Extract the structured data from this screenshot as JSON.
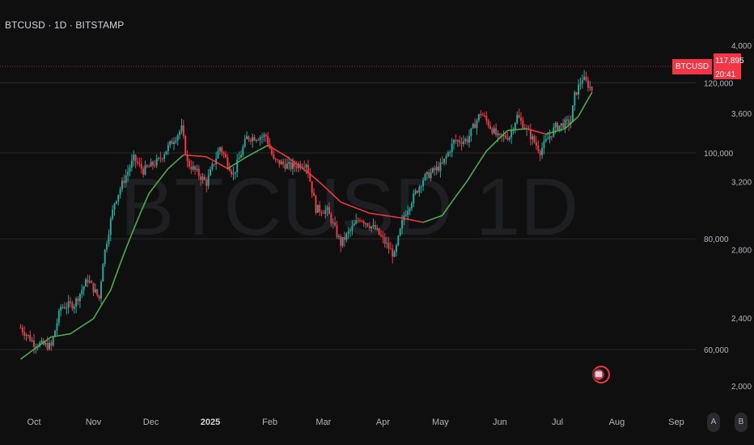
{
  "header": {
    "title": "BTCUSD · 1D · BITSTAMP"
  },
  "watermark": "BTCUSD 1D",
  "price_tag": {
    "symbol": "BTCUSD",
    "price": "117,895",
    "countdown": "20:41"
  },
  "axis_buttons": {
    "auto": "A",
    "log": "B"
  },
  "colors": {
    "background": "#0f0f0f",
    "up": "#26a69a",
    "down": "#f23645",
    "ma_up": "#4caf50",
    "ma_down": "#f23645",
    "grid": "#2a2a2e"
  },
  "chart_data": {
    "type": "candlestick",
    "symbol": "BTCUSD",
    "timeframe": "1D",
    "exchange": "BITSTAMP",
    "y_scale": "log",
    "ylim": [
      52000,
      124000
    ],
    "left_axis_ticks": [
      "120,000",
      "100,000",
      "80,000",
      "60,000"
    ],
    "right_axis_ticks": [
      "4,000",
      "3,600",
      "3,200",
      "2,800",
      "2,400",
      "2,000"
    ],
    "x_tick_labels": [
      "Oct",
      "Nov",
      "Dec",
      "2025",
      "Feb",
      "Mar",
      "Apr",
      "May",
      "Jun",
      "Jul",
      "Aug",
      "Sep"
    ],
    "price_path": [
      [
        "2024-09-24",
        63500
      ],
      [
        "2024-10-01",
        61000
      ],
      [
        "2024-10-10",
        60500
      ],
      [
        "2024-10-15",
        67000
      ],
      [
        "2024-10-22",
        67500
      ],
      [
        "2024-10-29",
        72000
      ],
      [
        "2024-11-04",
        68500
      ],
      [
        "2024-11-06",
        75500
      ],
      [
        "2024-11-12",
        88000
      ],
      [
        "2024-11-22",
        98500
      ],
      [
        "2024-11-27",
        95500
      ],
      [
        "2024-12-05",
        98000
      ],
      [
        "2024-12-17",
        106500
      ],
      [
        "2024-12-20",
        97500
      ],
      [
        "2024-12-30",
        92500
      ],
      [
        "2025-01-06",
        101500
      ],
      [
        "2025-01-13",
        94500
      ],
      [
        "2025-01-20",
        104000
      ],
      [
        "2025-01-30",
        104500
      ],
      [
        "2025-02-03",
        98000
      ],
      [
        "2025-02-12",
        96500
      ],
      [
        "2025-02-20",
        97500
      ],
      [
        "2025-02-25",
        86500
      ],
      [
        "2025-03-03",
        86000
      ],
      [
        "2025-03-10",
        79000
      ],
      [
        "2025-03-20",
        84500
      ],
      [
        "2025-03-28",
        82000
      ],
      [
        "2025-04-07",
        76500
      ],
      [
        "2025-04-12",
        85000
      ],
      [
        "2025-04-22",
        93500
      ],
      [
        "2025-05-02",
        97000
      ],
      [
        "2025-05-08",
        103000
      ],
      [
        "2025-05-15",
        103500
      ],
      [
        "2025-05-22",
        111000
      ],
      [
        "2025-05-31",
        104000
      ],
      [
        "2025-06-06",
        104500
      ],
      [
        "2025-06-10",
        110000
      ],
      [
        "2025-06-17",
        104500
      ],
      [
        "2025-06-22",
        100500
      ],
      [
        "2025-06-30",
        107000
      ],
      [
        "2025-07-08",
        108500
      ],
      [
        "2025-07-10",
        116000
      ],
      [
        "2025-07-14",
        121500
      ],
      [
        "2025-07-19",
        117895
      ]
    ],
    "moving_average": [
      [
        "2024-09-24",
        58500
      ],
      [
        "2024-10-10",
        62000
      ],
      [
        "2024-10-20",
        62500
      ],
      [
        "2024-11-01",
        65000
      ],
      [
        "2024-11-10",
        70000
      ],
      [
        "2024-11-20",
        80000
      ],
      [
        "2024-11-30",
        90000
      ],
      [
        "2024-12-10",
        96000
      ],
      [
        "2024-12-18",
        99500
      ],
      [
        "2024-12-30",
        99000
      ],
      [
        "2025-01-10",
        96000
      ],
      [
        "2025-01-20",
        99000
      ],
      [
        "2025-01-31",
        102000
      ],
      [
        "2025-02-10",
        99000
      ],
      [
        "2025-02-25",
        93500
      ],
      [
        "2025-03-10",
        88000
      ],
      [
        "2025-03-25",
        85500
      ],
      [
        "2025-04-10",
        84500
      ],
      [
        "2025-04-22",
        83500
      ],
      [
        "2025-05-02",
        85000
      ],
      [
        "2025-05-15",
        93000
      ],
      [
        "2025-05-25",
        100500
      ],
      [
        "2025-06-05",
        106000
      ],
      [
        "2025-06-15",
        106500
      ],
      [
        "2025-06-25",
        105000
      ],
      [
        "2025-07-05",
        106500
      ],
      [
        "2025-07-12",
        110000
      ],
      [
        "2025-07-19",
        117000
      ]
    ]
  }
}
